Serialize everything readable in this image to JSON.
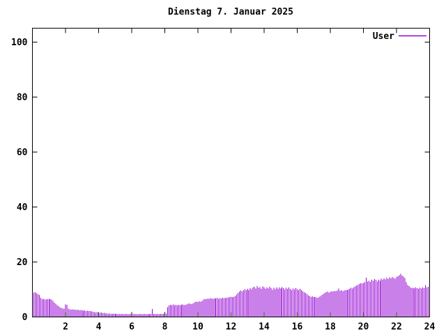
{
  "window": {
    "background": "#ffffff"
  },
  "chart_data": {
    "type": "bar",
    "title": "Dienstag 7. Januar 2025",
    "xlabel": "",
    "ylabel": "",
    "x_unit": "hour_of_day",
    "sample_interval_minutes": 5,
    "xlim": [
      0,
      24
    ],
    "ylim": [
      0,
      105
    ],
    "x_ticks": [
      2,
      4,
      6,
      8,
      10,
      12,
      14,
      16,
      18,
      20,
      22,
      24
    ],
    "y_ticks": [
      0,
      20,
      40,
      60,
      80,
      100
    ],
    "grid": false,
    "legend_position": "top-right-inside",
    "axis_color": "#000000",
    "text_color": "#000000",
    "series": [
      {
        "name": "User",
        "color": "#9400D3",
        "style": "impulses",
        "values": [
          8.8,
          9.0,
          8.6,
          8.3,
          8.0,
          7.0,
          6.4,
          6.6,
          6.3,
          6.5,
          6.4,
          6.6,
          6.5,
          6.3,
          5.8,
          5.2,
          4.8,
          4.3,
          3.9,
          3.6,
          3.3,
          3.1,
          3.0,
          4.5,
          4.4,
          3.0,
          2.8,
          2.7,
          2.8,
          2.6,
          2.7,
          2.5,
          2.6,
          2.4,
          2.5,
          2.4,
          2.3,
          2.4,
          2.2,
          2.3,
          2.1,
          2.2,
          2.0,
          1.9,
          1.8,
          1.7,
          1.8,
          1.6,
          1.5,
          1.6,
          1.4,
          1.5,
          1.3,
          1.4,
          1.2,
          1.3,
          1.2,
          1.2,
          1.3,
          1.1,
          1.2,
          1.0,
          1.1,
          1.0,
          1.1,
          1.0,
          1.0,
          1.1,
          1.0,
          1.0,
          1.1,
          1.0,
          1.0,
          1.1,
          1.0,
          1.0,
          1.0,
          1.1,
          1.0,
          1.0,
          1.1,
          1.0,
          1.0,
          1.1,
          1.0,
          1.2,
          2.9,
          1.2,
          1.1,
          1.0,
          1.1,
          1.0,
          1.1,
          1.2,
          1.1,
          1.2,
          1.3,
          3.6,
          4.2,
          4.4,
          4.3,
          4.5,
          4.3,
          4.4,
          4.2,
          4.4,
          4.3,
          4.4,
          4.5,
          4.3,
          4.4,
          4.6,
          4.8,
          4.9,
          4.7,
          4.8,
          5.0,
          5.4,
          5.6,
          5.5,
          5.7,
          5.6,
          5.8,
          6.3,
          6.6,
          6.5,
          6.7,
          6.6,
          6.8,
          6.7,
          6.6,
          6.8,
          6.7,
          6.9,
          6.6,
          6.8,
          6.7,
          6.9,
          6.8,
          7.0,
          6.9,
          7.1,
          7.2,
          7.3,
          7.2,
          7.4,
          7.6,
          8.1,
          8.7,
          9.2,
          9.6,
          9.3,
          9.8,
          10.1,
          9.7,
          10.2,
          9.8,
          10.5,
          10.1,
          10.8,
          11.0,
          10.4,
          11.2,
          10.6,
          10.9,
          10.3,
          11.1,
          10.7,
          10.2,
          10.8,
          10.4,
          11.0,
          10.5,
          9.9,
          10.6,
          10.1,
          10.7,
          10.3,
          10.8,
          10.4,
          10.9,
          10.5,
          10.0,
          10.6,
          10.2,
          10.7,
          10.3,
          9.8,
          10.4,
          10.0,
          10.5,
          10.1,
          9.7,
          10.2,
          9.8,
          9.4,
          9.0,
          8.7,
          8.3,
          7.9,
          7.6,
          7.3,
          7.5,
          7.2,
          7.4,
          7.1,
          6.9,
          7.3,
          7.6,
          8.0,
          8.4,
          8.7,
          9.0,
          9.2,
          8.9,
          9.1,
          9.4,
          9.2,
          9.5,
          9.3,
          9.6,
          10.4,
          9.5,
          9.7,
          9.4,
          9.6,
          9.8,
          9.7,
          10.0,
          10.3,
          10.6,
          10.4,
          10.8,
          11.1,
          11.4,
          11.7,
          12.0,
          12.3,
          12.1,
          12.4,
          12.7,
          14.3,
          12.9,
          13.2,
          12.8,
          13.5,
          13.1,
          13.8,
          13.4,
          12.9,
          13.6,
          13.2,
          13.9,
          13.5,
          14.1,
          13.7,
          14.3,
          13.8,
          14.4,
          14.0,
          14.6,
          14.2,
          13.9,
          14.5,
          14.8,
          15.2,
          15.7,
          15.1,
          14.7,
          14.2,
          12.6,
          11.7,
          11.2,
          10.8,
          10.5,
          10.6,
          10.4,
          10.7,
          10.5,
          10.3,
          10.6,
          10.4,
          10.7,
          10.5,
          11.5,
          10.8,
          11.0,
          11.2
        ]
      }
    ]
  }
}
